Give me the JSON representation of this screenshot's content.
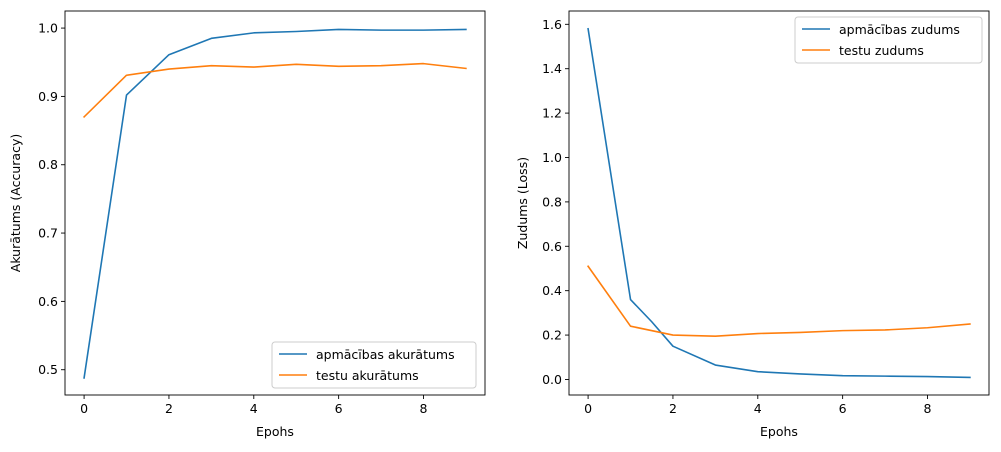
{
  "chart_data": [
    {
      "type": "line",
      "xlabel": "Epohs",
      "ylabel": "Akurātums (Accuracy)",
      "xlim": [
        -0.45,
        9.45
      ],
      "ylim": [
        0.463,
        1.025
      ],
      "xticks": [
        0,
        2,
        4,
        6,
        8
      ],
      "yticks": [
        0.5,
        0.6,
        0.7,
        0.8,
        0.9,
        1.0
      ],
      "yticklabels": [
        "0.5",
        "0.6",
        "0.7",
        "0.8",
        "0.9",
        "1.0"
      ],
      "legend_position": "lower-right",
      "grid": false,
      "series": [
        {
          "name": "apmācības akurātums",
          "color": "#1f77b4",
          "x": [
            0,
            1,
            2,
            3,
            4,
            5,
            6,
            7,
            8,
            9
          ],
          "y": [
            0.488,
            0.902,
            0.961,
            0.985,
            0.993,
            0.995,
            0.998,
            0.997,
            0.997,
            0.998
          ]
        },
        {
          "name": "testu akurātums",
          "color": "#ff7f0e",
          "x": [
            0,
            1,
            2,
            3,
            4,
            5,
            6,
            7,
            8,
            9
          ],
          "y": [
            0.87,
            0.931,
            0.94,
            0.945,
            0.943,
            0.947,
            0.944,
            0.945,
            0.948,
            0.941
          ]
        }
      ]
    },
    {
      "type": "line",
      "xlabel": "Epohs",
      "ylabel": "Zudums (Loss)",
      "xlim": [
        -0.45,
        9.45
      ],
      "ylim": [
        -0.07,
        1.66
      ],
      "xticks": [
        0,
        2,
        4,
        6,
        8
      ],
      "yticks": [
        0.0,
        0.2,
        0.4,
        0.6,
        0.8,
        1.0,
        1.2,
        1.4,
        1.6
      ],
      "yticklabels": [
        "0.0",
        "0.2",
        "0.4",
        "0.6",
        "0.8",
        "1.0",
        "1.2",
        "1.4",
        "1.6"
      ],
      "legend_position": "upper-right",
      "grid": false,
      "series": [
        {
          "name": "apmācības zudums",
          "color": "#1f77b4",
          "x": [
            0,
            1,
            1.5,
            2,
            3,
            4,
            5,
            6,
            7,
            8,
            9
          ],
          "y": [
            1.58,
            0.36,
            0.26,
            0.15,
            0.065,
            0.035,
            0.025,
            0.017,
            0.015,
            0.013,
            0.009
          ]
        },
        {
          "name": "testu zudums",
          "color": "#ff7f0e",
          "x": [
            0,
            1,
            2,
            3,
            4,
            5,
            6,
            7,
            8,
            9
          ],
          "y": [
            0.51,
            0.24,
            0.2,
            0.195,
            0.207,
            0.212,
            0.22,
            0.223,
            0.233,
            0.25
          ]
        }
      ]
    }
  ]
}
